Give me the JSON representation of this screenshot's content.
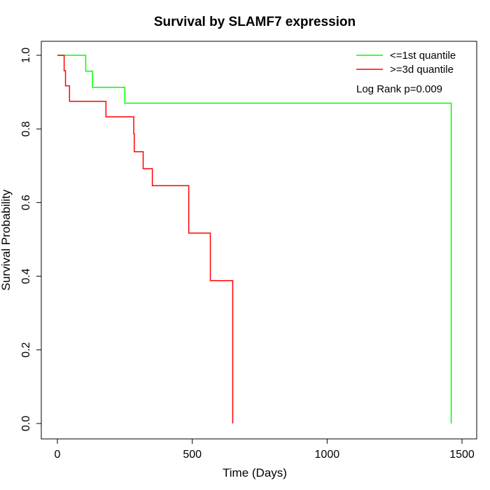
{
  "chart_data": {
    "type": "line",
    "title": "Survival by SLAMF7 expression",
    "xlabel": "Time (Days)",
    "ylabel": "Survival Probability",
    "xlim": [
      0,
      1500
    ],
    "ylim": [
      0,
      1
    ],
    "x_ticks": [
      0,
      500,
      1000,
      1500
    ],
    "y_ticks": [
      0.0,
      0.2,
      0.4,
      0.6,
      0.8,
      1.0
    ],
    "x_tick_labels": [
      "0",
      "500",
      "1000",
      "1500"
    ],
    "y_tick_labels": [
      "0.0",
      "0.2",
      "0.4",
      "0.6",
      "0.8",
      "1.0"
    ],
    "grid": false,
    "legend_position": "top-right",
    "annotation": "Log Rank p=0.009",
    "series": [
      {
        "name": "<=1st quantile",
        "color": "#00ff00",
        "step": true,
        "x": [
          0,
          105,
          130,
          250,
          1460,
          1460
        ],
        "y": [
          1.0,
          0.957,
          0.913,
          0.87,
          0.87,
          0.0
        ]
      },
      {
        "name": ">=3d quantile",
        "color": "#ff0000",
        "step": true,
        "x": [
          0,
          25,
          30,
          45,
          180,
          283,
          285,
          318,
          352,
          487,
          567,
          650,
          650
        ],
        "y": [
          1.0,
          0.958,
          0.917,
          0.875,
          0.833,
          0.787,
          0.738,
          0.692,
          0.646,
          0.517,
          0.388,
          0.388,
          0.0
        ]
      }
    ]
  }
}
